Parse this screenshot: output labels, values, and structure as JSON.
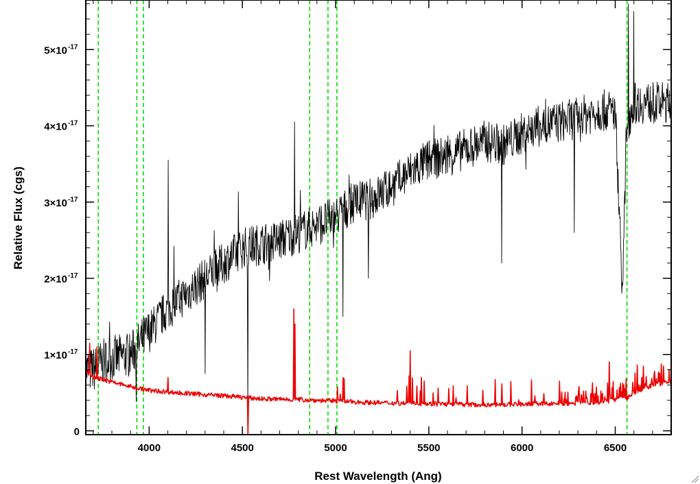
{
  "chart_data": {
    "type": "line",
    "xlabel": "Rest Wavelength (Ang)",
    "ylabel": "Relative Flux (cgs)",
    "xlim": [
      3660,
      6800
    ],
    "ylim": [
      -5e-19,
      5.65e-17
    ],
    "x_ticks": [
      {
        "value": 4000,
        "label": "4000"
      },
      {
        "value": 4500,
        "label": "4500"
      },
      {
        "value": 5000,
        "label": "5000"
      },
      {
        "value": 5500,
        "label": "5500"
      },
      {
        "value": 6000,
        "label": "6000"
      },
      {
        "value": 6500,
        "label": "6500"
      }
    ],
    "y_ticks": [
      {
        "value": 0,
        "label": "0"
      },
      {
        "value": 1e-17,
        "label": "1×10",
        "exp": "-17"
      },
      {
        "value": 2e-17,
        "label": "2×10",
        "exp": "-17"
      },
      {
        "value": 3e-17,
        "label": "3×10",
        "exp": "-17"
      },
      {
        "value": 4e-17,
        "label": "4×10",
        "exp": "-17"
      },
      {
        "value": 5e-17,
        "label": "5×10",
        "exp": "-17"
      }
    ],
    "grid": false,
    "vlines": [
      {
        "x": 3727,
        "color": "#00dd00",
        "style": "dashed"
      },
      {
        "x": 3934,
        "color": "#00dd00",
        "style": "dashed"
      },
      {
        "x": 3969,
        "color": "#00dd00",
        "style": "dashed"
      },
      {
        "x": 4861,
        "color": "#00dd00",
        "style": "dashed"
      },
      {
        "x": 4959,
        "color": "#00dd00",
        "style": "dashed"
      },
      {
        "x": 5007,
        "color": "#00dd00",
        "style": "dashed"
      },
      {
        "x": 6563,
        "color": "#00dd00",
        "style": "dashed"
      }
    ],
    "series": [
      {
        "color": "#000000",
        "style": "noisy-spectrum",
        "noise": 5.5e-18,
        "x": [
          3660,
          3700,
          3750,
          3800,
          3900,
          4000,
          4100,
          4200,
          4300,
          4400,
          4500,
          4600,
          4700,
          4800,
          4900,
          5000,
          5100,
          5200,
          5300,
          5400,
          5500,
          5600,
          5700,
          5800,
          5900,
          6000,
          6100,
          6200,
          6300,
          6400,
          6500,
          6540,
          6560,
          6600,
          6700,
          6800
        ],
        "y": [
          8e-18,
          8e-18,
          9e-18,
          9.5e-18,
          1e-17,
          1.3e-17,
          1.6e-17,
          1.8e-17,
          2e-17,
          2.2e-17,
          2.4e-17,
          2.45e-17,
          2.5e-17,
          2.6e-17,
          2.7e-17,
          2.8e-17,
          3e-17,
          3.05e-17,
          3.2e-17,
          3.4e-17,
          3.55e-17,
          3.6e-17,
          3.7e-17,
          3.8e-17,
          3.75e-17,
          3.9e-17,
          4e-17,
          4.05e-17,
          4.1e-17,
          4.2e-17,
          4.2e-17,
          1.8e-17,
          4e-17,
          4.3e-17,
          4.3e-17,
          4.3e-17
        ],
        "features": [
          {
            "x": 4102,
            "y": 3.55e-17
          },
          {
            "x": 4300,
            "y": 7.5e-18
          },
          {
            "x": 4530,
            "y": 2.5e-18
          },
          {
            "x": 4780,
            "y": 4.05e-17
          },
          {
            "x": 5040,
            "y": 1.5e-17
          },
          {
            "x": 5175,
            "y": 2e-17
          },
          {
            "x": 5270,
            "y": 3.4e-17
          },
          {
            "x": 5890,
            "y": 2.2e-17
          },
          {
            "x": 6280,
            "y": 2.6e-17
          },
          {
            "x": 6570,
            "y": 5.6e-17
          },
          {
            "x": 6600,
            "y": 5.5e-17
          }
        ]
      },
      {
        "color": "#ee0000",
        "style": "error-spectrum",
        "noise": 6e-19,
        "x": [
          3660,
          3700,
          3750,
          3800,
          3900,
          4000,
          4200,
          4400,
          4600,
          4800,
          5000,
          5200,
          5400,
          5600,
          5800,
          6000,
          6200,
          6400,
          6560,
          6600,
          6700,
          6800
        ],
        "y": [
          8e-18,
          7e-18,
          6.8e-18,
          6.4e-18,
          5.8e-18,
          5.3e-18,
          4.9e-18,
          4.6e-18,
          4.2e-18,
          4.1e-18,
          3.9e-18,
          3.7e-18,
          3.6e-18,
          3.5e-18,
          3.4e-18,
          3.5e-18,
          3.6e-18,
          3.7e-18,
          4.2e-18,
          5e-18,
          6e-18,
          6.5e-18
        ],
        "features": [
          {
            "x": 3680,
            "y": 1.15e-17
          },
          {
            "x": 3720,
            "y": 1.1e-17
          },
          {
            "x": 4102,
            "y": 7e-18
          },
          {
            "x": 4530,
            "y": -5e-19
          },
          {
            "x": 4775,
            "y": 1.6e-17
          },
          {
            "x": 4782,
            "y": 1.4e-17
          },
          {
            "x": 5040,
            "y": 7e-18
          },
          {
            "x": 5400,
            "y": 1.05e-17
          },
          {
            "x": 5460,
            "y": 7e-18
          },
          {
            "x": 6200,
            "y": 6.5e-18
          },
          {
            "x": 6650,
            "y": 8.5e-18
          },
          {
            "x": 6760,
            "y": 8.5e-18
          }
        ]
      }
    ]
  }
}
